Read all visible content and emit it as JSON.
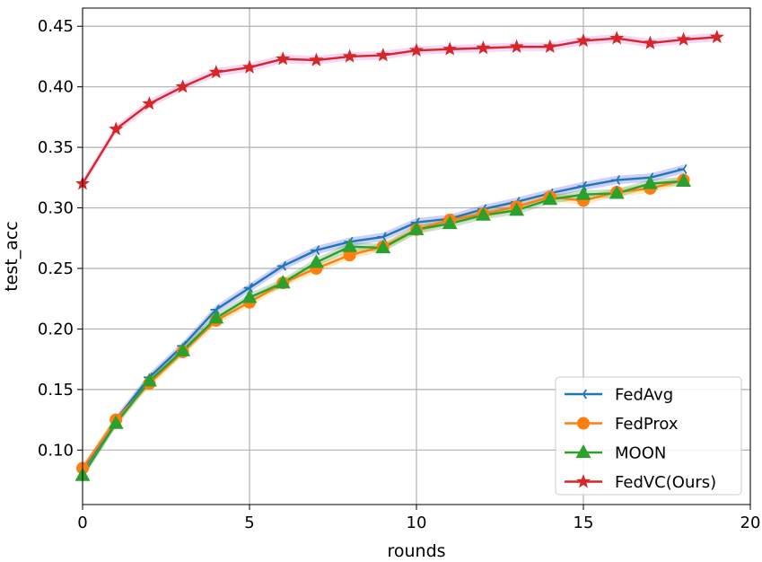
{
  "chart_data": {
    "type": "line",
    "xlabel": "rounds",
    "ylabel": "test_acc",
    "xlim": [
      0,
      20
    ],
    "ylim": [
      0.055,
      0.465
    ],
    "xticks": [
      0,
      5,
      10,
      15,
      20
    ],
    "yticks": [
      0.1,
      0.15,
      0.2,
      0.25,
      0.3,
      0.35,
      0.4,
      0.45
    ],
    "xtick_labels": [
      "0",
      "5",
      "10",
      "15",
      "20"
    ],
    "ytick_labels": [
      "0.10",
      "0.15",
      "0.20",
      "0.25",
      "0.30",
      "0.35",
      "0.40",
      "0.45"
    ],
    "grid": true,
    "legend_position": "lower-right",
    "series": [
      {
        "name": "FedAvg",
        "color": "#1f77b4",
        "band_color": "#3f3ff0",
        "marker": "tri-left",
        "x": [
          0,
          1,
          2,
          3,
          4,
          5,
          6,
          7,
          8,
          9,
          10,
          11,
          12,
          13,
          14,
          15,
          16,
          17,
          18
        ],
        "y": [
          0.083,
          0.125,
          0.16,
          0.186,
          0.216,
          0.234,
          0.252,
          0.265,
          0.272,
          0.276,
          0.288,
          0.291,
          0.299,
          0.305,
          0.312,
          0.318,
          0.323,
          0.325,
          0.332
        ]
      },
      {
        "name": "FedProx",
        "color": "#ff7f0e",
        "band_color": "#ffb000",
        "marker": "circle",
        "x": [
          0,
          1,
          2,
          3,
          4,
          5,
          6,
          7,
          8,
          9,
          10,
          11,
          12,
          13,
          14,
          15,
          16,
          17,
          18
        ],
        "y": [
          0.085,
          0.125,
          0.155,
          0.181,
          0.207,
          0.222,
          0.238,
          0.25,
          0.261,
          0.268,
          0.282,
          0.29,
          0.295,
          0.301,
          0.309,
          0.306,
          0.313,
          0.316,
          0.323
        ]
      },
      {
        "name": "MOON",
        "color": "#2ca02c",
        "band_color": "#2e8b2e",
        "marker": "triangle",
        "x": [
          0,
          1,
          2,
          3,
          4,
          5,
          6,
          7,
          8,
          9,
          10,
          11,
          12,
          13,
          14,
          15,
          16,
          17,
          18
        ],
        "y": [
          0.079,
          0.122,
          0.157,
          0.182,
          0.209,
          0.226,
          0.238,
          0.255,
          0.268,
          0.267,
          0.282,
          0.287,
          0.294,
          0.298,
          0.307,
          0.311,
          0.312,
          0.32,
          0.322
        ]
      },
      {
        "name": "FedVC(Ours)",
        "color": "#d62728",
        "band_color": "#e060e0",
        "marker": "star",
        "x": [
          0,
          1,
          2,
          3,
          4,
          5,
          6,
          7,
          8,
          9,
          10,
          11,
          12,
          13,
          14,
          15,
          16,
          17,
          18,
          19
        ],
        "y": [
          0.32,
          0.365,
          0.386,
          0.4,
          0.412,
          0.416,
          0.423,
          0.422,
          0.425,
          0.426,
          0.43,
          0.431,
          0.432,
          0.433,
          0.433,
          0.438,
          0.44,
          0.436,
          0.439,
          0.441
        ]
      }
    ]
  }
}
